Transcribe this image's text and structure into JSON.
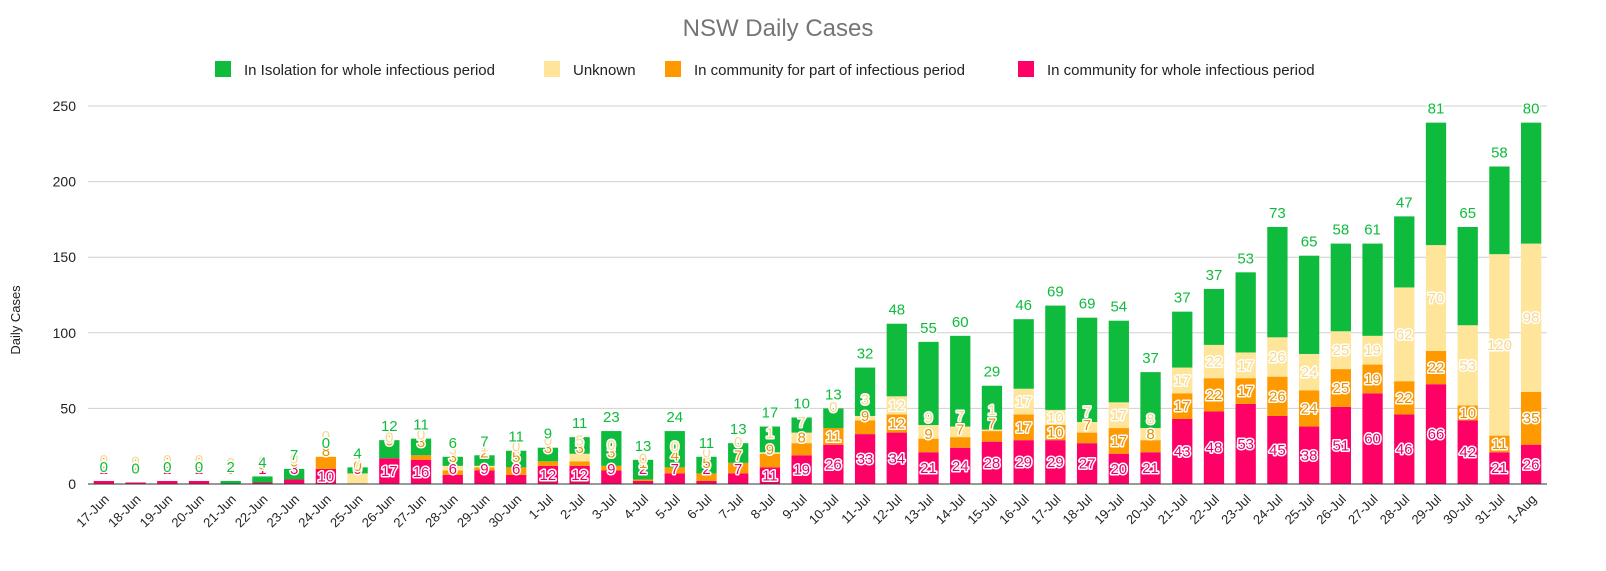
{
  "chart_data": {
    "type": "bar",
    "stacked": true,
    "title": "NSW Daily Cases",
    "xlabel": "",
    "ylabel": "Daily Cases",
    "ylim": [
      0,
      250
    ],
    "yticks": [
      0,
      50,
      100,
      150,
      200,
      250
    ],
    "grid": true,
    "legend_position": "top",
    "categories": [
      "17-Jun",
      "18-Jun",
      "19-Jun",
      "20-Jun",
      "21-Jun",
      "22-Jun",
      "23-Jun",
      "24-Jun",
      "25-Jun",
      "26-Jun",
      "27-Jun",
      "28-Jun",
      "29-Jun",
      "30-Jun",
      "1-Jul",
      "2-Jul",
      "3-Jul",
      "4-Jul",
      "5-Jul",
      "6-Jul",
      "7-Jul",
      "8-Jul",
      "9-Jul",
      "10-Jul",
      "11-Jul",
      "12-Jul",
      "13-Jul",
      "14-Jul",
      "15-Jul",
      "16-Jul",
      "17-Jul",
      "18-Jul",
      "19-Jul",
      "20-Jul",
      "21-Jul",
      "22-Jul",
      "23-Jul",
      "24-Jul",
      "25-Jul",
      "26-Jul",
      "27-Jul",
      "28-Jul",
      "29-Jul",
      "30-Jul",
      "31-Jul",
      "1-Aug"
    ],
    "series": [
      {
        "name": "In community for whole infectious period",
        "color": "#ff0066",
        "values": [
          2,
          1,
          2,
          2,
          0,
          1,
          3,
          10,
          0,
          17,
          16,
          6,
          9,
          6,
          12,
          12,
          9,
          2,
          7,
          2,
          7,
          11,
          19,
          26,
          33,
          34,
          21,
          24,
          28,
          29,
          29,
          27,
          20,
          21,
          43,
          48,
          53,
          45,
          38,
          51,
          60,
          46,
          66,
          42,
          21,
          26
        ]
      },
      {
        "name": "In community for part of infectious period",
        "color": "#ff9900",
        "values": [
          0,
          0,
          0,
          0,
          0,
          0,
          0,
          8,
          0,
          0,
          3,
          3,
          2,
          5,
          3,
          3,
          3,
          1,
          4,
          5,
          7,
          9,
          8,
          11,
          9,
          12,
          9,
          7,
          7,
          17,
          10,
          7,
          17,
          8,
          17,
          22,
          17,
          26,
          24,
          25,
          19,
          22,
          22,
          10,
          11,
          35
        ]
      },
      {
        "name": "Unknown",
        "color": "#ffe599",
        "values": [
          0,
          0,
          0,
          0,
          0,
          0,
          0,
          0,
          7,
          0,
          0,
          3,
          1,
          0,
          0,
          5,
          0,
          0,
          0,
          0,
          0,
          1,
          7,
          0,
          3,
          12,
          9,
          7,
          1,
          17,
          10,
          7,
          17,
          8,
          17,
          22,
          17,
          26,
          24,
          25,
          19,
          62,
          70,
          53,
          120,
          98
        ]
      },
      {
        "name": "In Isolation for whole infectious period",
        "color": "#0fbb3c",
        "values": [
          0,
          0,
          0,
          0,
          2,
          4,
          7,
          0,
          4,
          12,
          11,
          6,
          7,
          11,
          9,
          11,
          23,
          13,
          24,
          11,
          13,
          17,
          10,
          13,
          32,
          48,
          55,
          60,
          29,
          46,
          69,
          69,
          54,
          37,
          37,
          37,
          53,
          73,
          65,
          58,
          61,
          47,
          81,
          65,
          58,
          80
        ]
      }
    ],
    "legend_order": [
      "In Isolation for whole infectious period",
      "Unknown",
      "In community for part of infectious period",
      "In community for whole infectious period"
    ],
    "label_colors": {
      "green": "#0fbb3c",
      "unknown": "#f5d98f",
      "orange": "#e69100",
      "pink": "#e8006a"
    }
  }
}
